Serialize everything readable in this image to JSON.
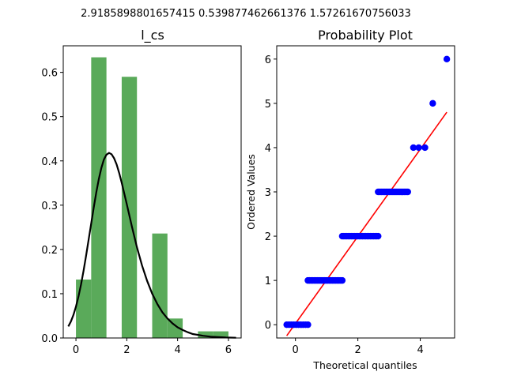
{
  "suptitle": "2.9185898801657415 0.539877462661376 1.57261670756033",
  "chart_data": [
    {
      "type": "bar",
      "title": "l_cs",
      "xlabel": "",
      "ylabel": "",
      "xlim": [
        -0.5,
        6.5
      ],
      "ylim": [
        0,
        0.66
      ],
      "xticks": [
        "0",
        "2",
        "4",
        "6"
      ],
      "yticks": [
        "0.0",
        "0.1",
        "0.2",
        "0.3",
        "0.4",
        "0.5",
        "0.6"
      ],
      "bar_color": "#5aaa5a",
      "bins": [
        {
          "x0": 0.0,
          "x1": 0.6,
          "value": 0.132
        },
        {
          "x0": 0.6,
          "x1": 1.2,
          "value": 0.634
        },
        {
          "x0": 1.2,
          "x1": 1.8,
          "value": 0.0
        },
        {
          "x0": 1.8,
          "x1": 2.4,
          "value": 0.59
        },
        {
          "x0": 2.4,
          "x1": 3.0,
          "value": 0.0
        },
        {
          "x0": 3.0,
          "x1": 3.6,
          "value": 0.236
        },
        {
          "x0": 3.6,
          "x1": 4.2,
          "value": 0.044
        },
        {
          "x0": 4.2,
          "x1": 4.8,
          "value": 0.0
        },
        {
          "x0": 4.8,
          "x1": 5.4,
          "value": 0.015
        },
        {
          "x0": 5.4,
          "x1": 6.0,
          "value": 0.015
        }
      ],
      "pdf_curve": {
        "color": "#000000",
        "x": [
          -0.3,
          -0.2,
          -0.1,
          0.0,
          0.1,
          0.2,
          0.3,
          0.4,
          0.5,
          0.6,
          0.7,
          0.8,
          0.9,
          1.0,
          1.1,
          1.2,
          1.3,
          1.4,
          1.5,
          1.6,
          1.7,
          1.8,
          1.9,
          2.0,
          2.2,
          2.4,
          2.6,
          2.8,
          3.0,
          3.2,
          3.4,
          3.6,
          3.8,
          4.0,
          4.2,
          4.4,
          4.6,
          4.8,
          5.0,
          5.3,
          5.6,
          5.9,
          6.3
        ],
        "y": [
          0.026,
          0.037,
          0.052,
          0.071,
          0.094,
          0.121,
          0.152,
          0.186,
          0.222,
          0.259,
          0.295,
          0.329,
          0.359,
          0.384,
          0.403,
          0.414,
          0.418,
          0.415,
          0.406,
          0.392,
          0.373,
          0.351,
          0.327,
          0.302,
          0.252,
          0.205,
          0.164,
          0.129,
          0.1,
          0.077,
          0.058,
          0.044,
          0.033,
          0.024,
          0.018,
          0.013,
          0.009,
          0.007,
          0.005,
          0.003,
          0.002,
          0.001,
          0.0005
        ]
      }
    },
    {
      "type": "scatter",
      "title": "Probability Plot",
      "xlabel": "Theoretical quantiles",
      "ylabel": "Ordered Values",
      "xlim": [
        -0.6,
        5.1
      ],
      "ylim": [
        -0.3,
        6.3
      ],
      "xticks": [
        "0",
        "2",
        "4"
      ],
      "yticks": [
        "0",
        "1",
        "2",
        "3",
        "4",
        "5",
        "6"
      ],
      "point_color": "#0000ff",
      "line_color": "#ff0000",
      "fit_line": {
        "x": [
          -0.28,
          4.85
        ],
        "y": [
          -0.25,
          4.8
        ]
      },
      "points": [
        {
          "y": 0,
          "x_from": -0.28,
          "x_to": 0.4,
          "n": 10
        },
        {
          "y": 1,
          "x_from": 0.4,
          "x_to": 1.5,
          "n": 22
        },
        {
          "y": 2,
          "x_from": 1.5,
          "x_to": 2.65,
          "n": 24
        },
        {
          "y": 3,
          "x_from": 2.65,
          "x_to": 3.6,
          "n": 20
        },
        {
          "y": 4,
          "x_from": 3.78,
          "x_to": 3.95,
          "n": 2
        },
        {
          "y": 4,
          "x_from": 4.15,
          "x_to": 4.15,
          "n": 1
        },
        {
          "y": 5,
          "x_from": 4.4,
          "x_to": 4.4,
          "n": 1
        },
        {
          "y": 6,
          "x_from": 4.85,
          "x_to": 4.85,
          "n": 1
        }
      ]
    }
  ]
}
